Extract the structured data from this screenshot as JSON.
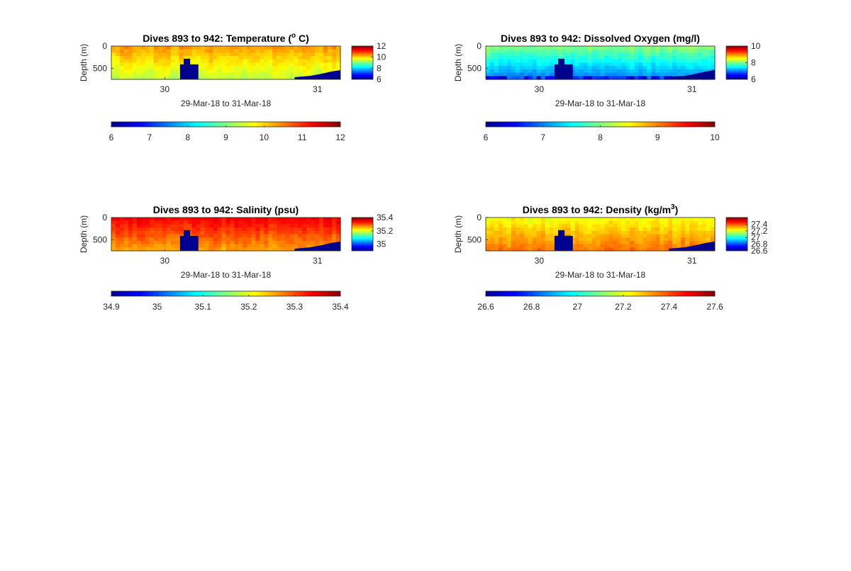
{
  "chart_data": [
    {
      "type": "heatmap",
      "title": "Dives 893 to 942: Temperature (",
      "title_sup": "o",
      "title_suffix": " C)",
      "ylabel": "Depth (m)",
      "xlabel": "29-Mar-18 to 31-Mar-18",
      "yticks": [
        "0",
        "500"
      ],
      "ylim": [
        0,
        750
      ],
      "xticks": [
        "30",
        "31"
      ],
      "xlim": [
        29.65,
        31.15
      ],
      "clim": [
        6,
        12
      ],
      "bg_value": 9.9,
      "surface_value": 10.3,
      "deep_value": 9.4,
      "colorbar_ticks": [
        "6",
        "7",
        "8",
        "9",
        "10",
        "11",
        "12"
      ],
      "side_colorbar_ticks": [
        "12",
        "10",
        "8",
        "6"
      ]
    },
    {
      "type": "heatmap",
      "title": "Dives 893 to 942: Dissolved Oxygen (mg/l)",
      "title_sup": "",
      "title_suffix": "",
      "ylabel": "Depth (m)",
      "xlabel": "29-Mar-18 to 31-Mar-18",
      "yticks": [
        "0",
        "500"
      ],
      "ylim": [
        0,
        750
      ],
      "xticks": [
        "30",
        "31"
      ],
      "xlim": [
        29.65,
        31.15
      ],
      "clim": [
        6,
        10
      ],
      "bg_value": 7.9,
      "surface_value": 8.0,
      "deep_value": 7.0,
      "colorbar_ticks": [
        "6",
        "7",
        "8",
        "9",
        "10"
      ],
      "side_colorbar_ticks": [
        "10",
        "8",
        "6"
      ]
    },
    {
      "type": "heatmap",
      "title": "Dives 893 to 942: Salinity (psu)",
      "title_sup": "",
      "title_suffix": "",
      "ylabel": "Depth (m)",
      "xlabel": "29-Mar-18 to 31-Mar-18",
      "yticks": [
        "0",
        "500"
      ],
      "ylim": [
        0,
        750
      ],
      "xticks": [
        "30",
        "31"
      ],
      "xlim": [
        29.65,
        31.15
      ],
      "clim": [
        34.9,
        35.4
      ],
      "bg_value": 35.31,
      "surface_value": 35.34,
      "deep_value": 35.26,
      "colorbar_ticks": [
        "34.9",
        "35",
        "35.1",
        "35.2",
        "35.3",
        "35.4"
      ],
      "side_colorbar_ticks": [
        "35.4",
        "35.2",
        "35"
      ]
    },
    {
      "type": "heatmap",
      "title": "Dives 893 to 942: Density (kg/m",
      "title_sup": "3",
      "title_suffix": ")",
      "ylabel": "Depth (m)",
      "xlabel": "29-Mar-18 to 31-Mar-18",
      "yticks": [
        "0",
        "500"
      ],
      "ylim": [
        0,
        750
      ],
      "xticks": [
        "30",
        "31"
      ],
      "xlim": [
        29.65,
        31.15
      ],
      "clim": [
        26.6,
        27.6
      ],
      "bg_value": 27.28,
      "surface_value": 27.22,
      "deep_value": 27.36,
      "colorbar_ticks": [
        "26.6",
        "26.8",
        "27",
        "27.2",
        "27.4",
        "27.6"
      ],
      "side_colorbar_ticks": [
        "27.4",
        "27.2",
        "27",
        "26.8",
        "26.6"
      ]
    }
  ],
  "no_data_regions": {
    "mid_gap_x": [
      30.1,
      30.22
    ],
    "end_gap_x_start": 30.85
  }
}
